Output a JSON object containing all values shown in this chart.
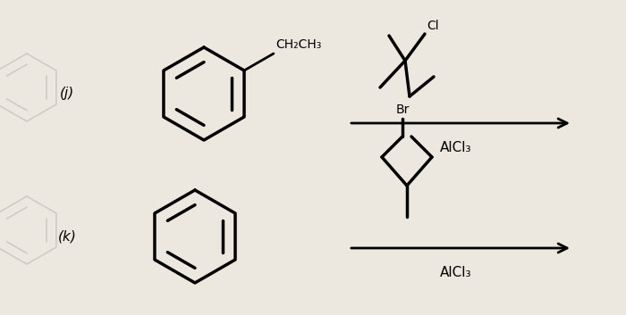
{
  "bg_color": "#ece8e0",
  "figsize": [
    7.0,
    3.53
  ],
  "dpi": 100,
  "label_j": "(j)",
  "label_k": "(k)",
  "alcl3": "AlCl₃",
  "ch2ch3": "CH₂CH₃",
  "cl_text": "Cl",
  "br_text": "Br"
}
